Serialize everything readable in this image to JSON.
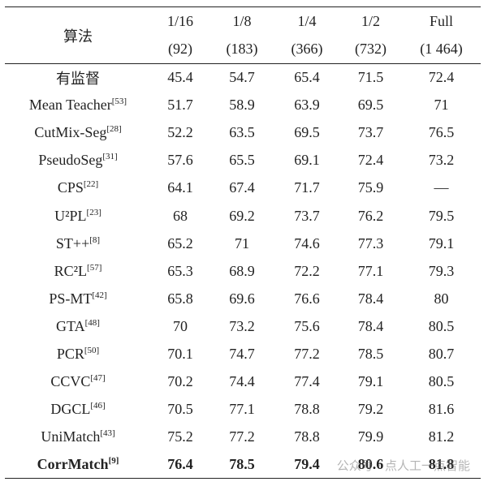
{
  "table": {
    "header": {
      "method": "算法",
      "columns": [
        {
          "label": "1/16",
          "count": "(92)"
        },
        {
          "label": "1/8",
          "count": "(183)"
        },
        {
          "label": "1/4",
          "count": "(366)"
        },
        {
          "label": "1/2",
          "count": "(732)"
        },
        {
          "label": "Full",
          "count": "(1 464)"
        }
      ]
    },
    "rows": [
      {
        "method": "有监督",
        "values": [
          45.4,
          54.7,
          65.4,
          71.5,
          72.4
        ]
      },
      {
        "method": "Mean Teacher",
        "ref": "[53]",
        "values": [
          51.7,
          58.9,
          63.9,
          69.5,
          71.0
        ]
      },
      {
        "method": "CutMix-Seg",
        "ref": "[28]",
        "values": [
          52.2,
          63.5,
          69.5,
          73.7,
          76.5
        ]
      },
      {
        "method": "PseudoSeg",
        "ref": "[31]",
        "values": [
          57.6,
          65.5,
          69.1,
          72.4,
          73.2
        ]
      },
      {
        "method": "CPS",
        "ref": "[22]",
        "values": [
          64.1,
          67.4,
          71.7,
          75.9,
          "—"
        ]
      },
      {
        "method": "U²PL",
        "ref": "[23]",
        "values": [
          68.0,
          69.2,
          73.7,
          76.2,
          79.5
        ]
      },
      {
        "method": "ST++",
        "ref": "[8]",
        "values": [
          65.2,
          71.0,
          74.6,
          77.3,
          79.1
        ]
      },
      {
        "method": "RC²L",
        "ref": "[57]",
        "values": [
          65.3,
          68.9,
          72.2,
          77.1,
          79.3
        ]
      },
      {
        "method": "PS-MT",
        "ref": "[42]",
        "values": [
          65.8,
          69.6,
          76.6,
          78.4,
          80.0
        ]
      },
      {
        "method": "GTA",
        "ref": "[48]",
        "values": [
          70.0,
          73.2,
          75.6,
          78.4,
          80.5
        ]
      },
      {
        "method": "PCR",
        "ref": "[50]",
        "values": [
          70.1,
          74.7,
          77.2,
          78.5,
          80.7
        ]
      },
      {
        "method": "CCVC",
        "ref": "[47]",
        "values": [
          70.2,
          74.4,
          77.4,
          79.1,
          80.5
        ]
      },
      {
        "method": "DGCL",
        "ref": "[46]",
        "values": [
          70.5,
          77.1,
          78.8,
          79.2,
          81.6
        ]
      },
      {
        "method": "UniMatch",
        "ref": "[43]",
        "values": [
          75.2,
          77.2,
          78.8,
          79.9,
          81.2
        ]
      },
      {
        "method": "CorrMatch",
        "ref": "[9]",
        "values": [
          76.4,
          78.5,
          79.4,
          80.6,
          81.8
        ],
        "bold": true
      }
    ]
  },
  "watermark": "公众号 · 点人工一点智能"
}
